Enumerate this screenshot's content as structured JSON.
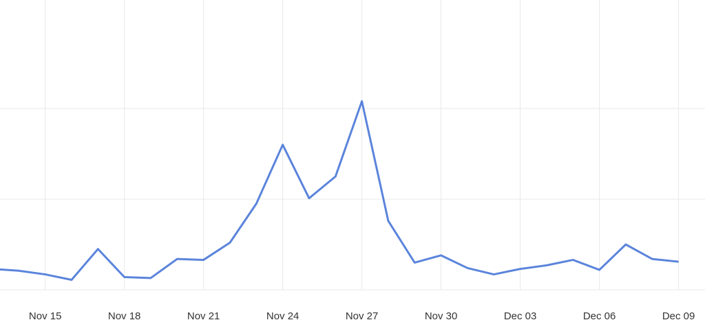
{
  "chart_data": {
    "type": "line",
    "categories": [
      null,
      null,
      "Nov 15",
      null,
      null,
      "Nov 18",
      null,
      null,
      "Nov 21",
      null,
      null,
      "Nov 24",
      null,
      null,
      "Nov 27",
      null,
      null,
      "Nov 30",
      null,
      null,
      "Dec 03",
      null,
      null,
      "Dec 06",
      null,
      null,
      "Dec 09"
    ],
    "series": [
      {
        "color": "#5b84db",
        "values": [
          0.23,
          0.21,
          0.17,
          0.11,
          0.45,
          0.14,
          0.13,
          0.34,
          0.33,
          0.52,
          0.95,
          1.6,
          1.01,
          1.25,
          2.08,
          0.76,
          0.3,
          0.38,
          0.24,
          0.17,
          0.23,
          0.27,
          0.33,
          0.22,
          0.5,
          0.34,
          0.31
        ]
      }
    ],
    "ylim": [
      0,
      3
    ],
    "yticks": [
      0,
      1,
      2
    ],
    "grid": true
  }
}
